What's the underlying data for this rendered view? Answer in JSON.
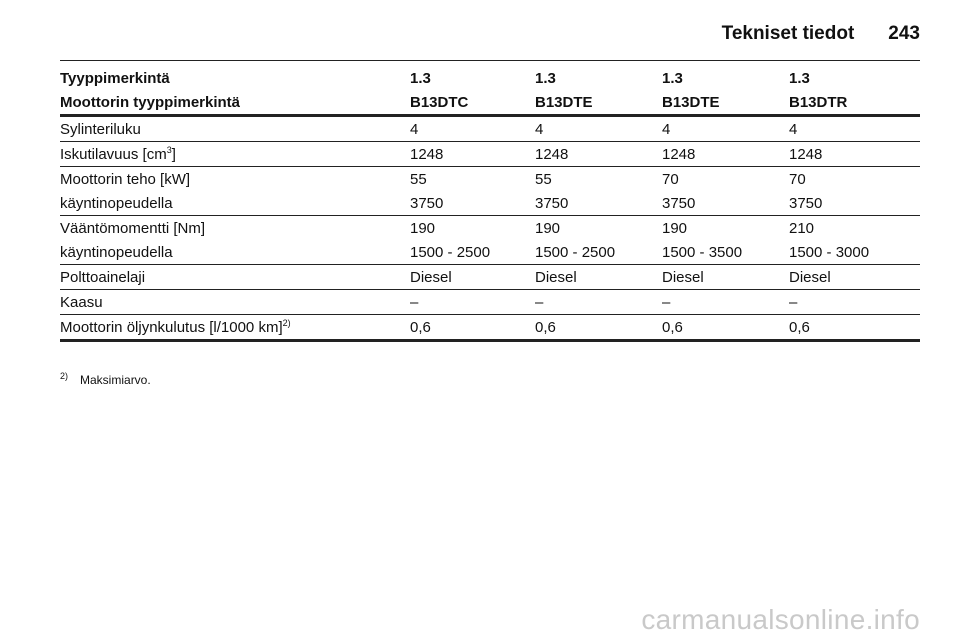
{
  "header": {
    "section_title": "Tekniset tiedot",
    "page_number": "243"
  },
  "table": {
    "head": [
      {
        "label": "Tyyppimerkintä",
        "values": [
          "1.3",
          "1.3",
          "1.3",
          "1.3"
        ]
      },
      {
        "label": "Moottorin tyyppimerkintä",
        "values": [
          "B13DTC",
          "B13DTE",
          "B13DTE",
          "B13DTR"
        ]
      }
    ],
    "cylinders": {
      "label": "Sylinteriluku",
      "values": [
        "4",
        "4",
        "4",
        "4"
      ]
    },
    "displacement": {
      "label": "Iskutilavuus [cm",
      "sup": "3",
      "label_end": "]",
      "values": [
        "1248",
        "1248",
        "1248",
        "1248"
      ]
    },
    "power": {
      "label": "Moottorin teho [kW]",
      "values": [
        "55",
        "55",
        "70",
        "70"
      ]
    },
    "power_rpm": {
      "label": "käyntinopeudella",
      "values": [
        "3750",
        "3750",
        "3750",
        "3750"
      ]
    },
    "torque": {
      "label": "Vääntömomentti [Nm]",
      "values": [
        "190",
        "190",
        "190",
        "210"
      ]
    },
    "torque_rpm": {
      "label": "käyntinopeudella",
      "values": [
        "1500 - 2500",
        "1500 - 2500",
        "1500 - 3500",
        "1500 - 3000"
      ]
    },
    "fuel": {
      "label": "Polttoainelaji",
      "values": [
        "Diesel",
        "Diesel",
        "Diesel",
        "Diesel"
      ]
    },
    "gas": {
      "label": "Kaasu",
      "values": [
        "–",
        "–",
        "–",
        "–"
      ]
    },
    "oil": {
      "label": "Moottorin öljynkulutus [l/1000 km]",
      "sup": "2)",
      "values": [
        "0,6",
        "0,6",
        "0,6",
        "0,6"
      ]
    }
  },
  "footnote": {
    "mark": "2)",
    "text": "Maksimiarvo."
  },
  "watermark": "carmanualsonline.info"
}
